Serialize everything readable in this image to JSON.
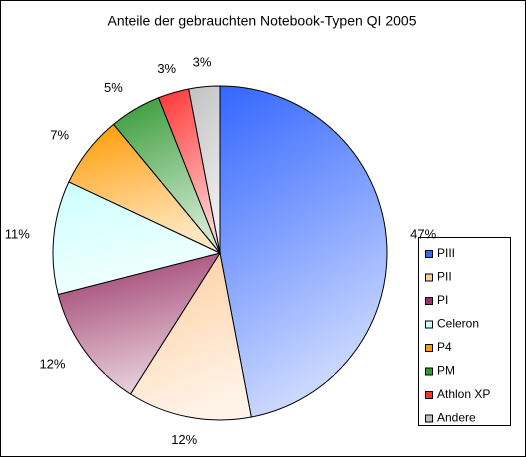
{
  "chart_data": {
    "type": "pie",
    "title": "Anteile der gebrauchten Notebook-Typen QI 2005",
    "categories": [
      "PIII",
      "PII",
      "PI",
      "Celeron",
      "P4",
      "PM",
      "Athlon XP",
      "Andere"
    ],
    "values": [
      47,
      12,
      12,
      11,
      7,
      5,
      3,
      3
    ],
    "value_labels": [
      "47%",
      "12%",
      "12%",
      "11%",
      "7%",
      "5%",
      "3%",
      "3%"
    ],
    "colors": [
      "#3366ff",
      "#ffcc99",
      "#993366",
      "#ccffff",
      "#ff9900",
      "#339933",
      "#ff3333",
      "#c0c0c0"
    ],
    "legend": "right"
  }
}
